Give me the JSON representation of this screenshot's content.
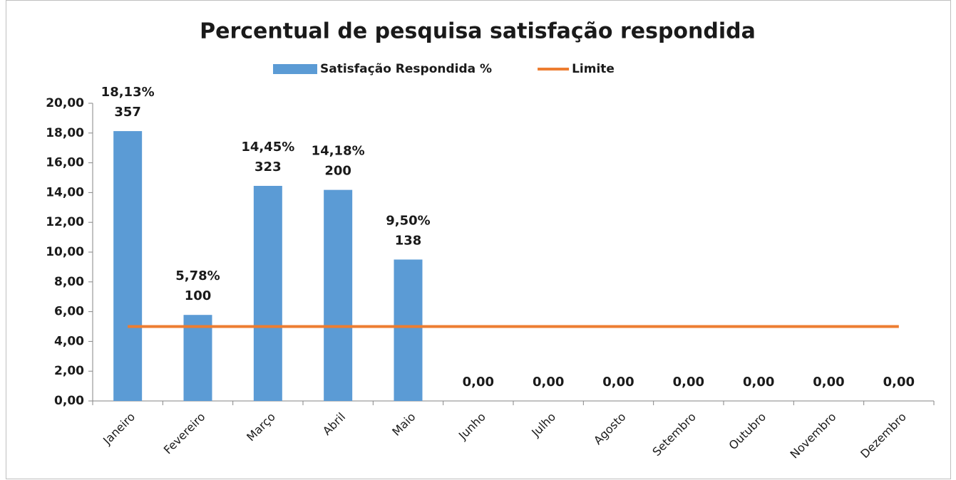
{
  "chart_data": {
    "type": "bar",
    "title": "Percentual de pesquisa satisfação respondida",
    "categories": [
      "Janeiro",
      "Fevereiro",
      "Março",
      "Abril",
      "Maio",
      "Junho",
      "Julho",
      "Agosto",
      "Setembro",
      "Outubro",
      "Novembro",
      "Dezembro"
    ],
    "series": [
      {
        "name": "Satisfação Respondida %",
        "type": "bar",
        "color": "#5b9bd5",
        "values": [
          18.13,
          5.78,
          14.45,
          14.18,
          9.5,
          0,
          0,
          0,
          0,
          0,
          0,
          0
        ],
        "value_labels": [
          "18,13%",
          "5,78%",
          "14,45%",
          "14,18%",
          "9,50%",
          "0,00",
          "0,00",
          "0,00",
          "0,00",
          "0,00",
          "0,00",
          "0,00"
        ],
        "counts": [
          357,
          100,
          323,
          200,
          138,
          null,
          null,
          null,
          null,
          null,
          null,
          null
        ]
      },
      {
        "name": "Limite",
        "type": "line",
        "color": "#ed7d31",
        "values": [
          5,
          5,
          5,
          5,
          5,
          5,
          5,
          5,
          5,
          5,
          5,
          5
        ]
      }
    ],
    "ylim": [
      0,
      20
    ],
    "yticks": [
      {
        "value": 0,
        "label": "0,00"
      },
      {
        "value": 2,
        "label": "2,00"
      },
      {
        "value": 4,
        "label": "4,00"
      },
      {
        "value": 6,
        "label": "6,00"
      },
      {
        "value": 8,
        "label": "8,00"
      },
      {
        "value": 10,
        "label": "10,00"
      },
      {
        "value": 12,
        "label": "12,00"
      },
      {
        "value": 14,
        "label": "14,00"
      },
      {
        "value": 16,
        "label": "16,00"
      },
      {
        "value": 18,
        "label": "18,00"
      },
      {
        "value": 20,
        "label": "20,00"
      }
    ],
    "legend": "top"
  }
}
